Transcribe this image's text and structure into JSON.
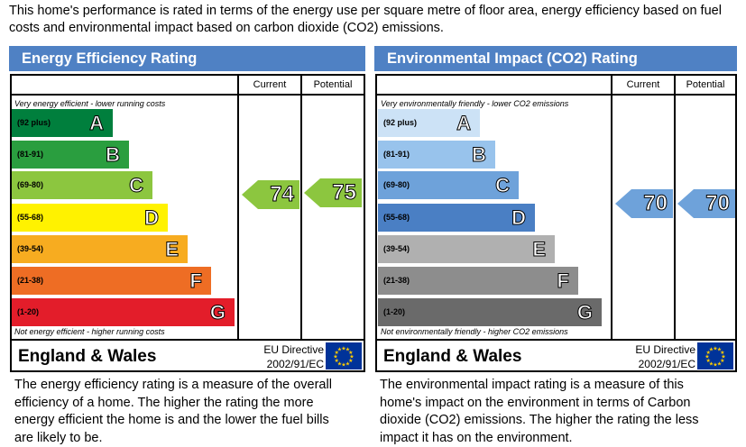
{
  "intro": "This home's performance is rated in terms of the energy use per square metre of floor area, energy efficiency based on fuel costs and environmental impact based on carbon dioxide (CO2) emissions.",
  "panels": [
    {
      "title": "Energy Efficiency Rating",
      "col_current": "Current",
      "col_potential": "Potential",
      "top_note": "Very energy efficient - lower running costs",
      "bottom_note": "Not energy efficient - higher running costs",
      "region": "England & Wales",
      "directive_line1": "EU Directive",
      "directive_line2": "2002/91/EC",
      "bands": [
        {
          "letter": "A",
          "range": "(92 plus)",
          "color": "#007f3d"
        },
        {
          "letter": "B",
          "range": "(81-91)",
          "color": "#2a9e3f"
        },
        {
          "letter": "C",
          "range": "(69-80)",
          "color": "#8cc63f"
        },
        {
          "letter": "D",
          "range": "(55-68)",
          "color": "#fff200"
        },
        {
          "letter": "E",
          "range": "(39-54)",
          "color": "#f7ac20"
        },
        {
          "letter": "F",
          "range": "(21-38)",
          "color": "#ee6d24"
        },
        {
          "letter": "G",
          "range": "(1-20)",
          "color": "#e31d2a"
        }
      ],
      "current": "74",
      "potential": "75",
      "arrow_color": "#8cc63f",
      "description": "The energy efficiency rating is a measure of the overall efficiency of a home. The higher the rating the more energy efficient the home is and the lower the fuel bills are likely to be."
    },
    {
      "title": "Environmental Impact (CO2) Rating",
      "col_current": "Current",
      "col_potential": "Potential",
      "top_note": "Very environmentally friendly - lower CO2 emissions",
      "bottom_note": "Not environmentally friendly - higher CO2 emissions",
      "region": "England & Wales",
      "directive_line1": "EU Directive",
      "directive_line2": "2002/91/EC",
      "bands": [
        {
          "letter": "A",
          "range": "(92 plus)",
          "color": "#cce2f6"
        },
        {
          "letter": "B",
          "range": "(81-91)",
          "color": "#98c3ec"
        },
        {
          "letter": "C",
          "range": "(69-80)",
          "color": "#6ea2da"
        },
        {
          "letter": "D",
          "range": "(55-68)",
          "color": "#4a7fc4"
        },
        {
          "letter": "E",
          "range": "(39-54)",
          "color": "#b0b0b0"
        },
        {
          "letter": "F",
          "range": "(21-38)",
          "color": "#8d8d8d"
        },
        {
          "letter": "G",
          "range": "(1-20)",
          "color": "#6a6a6a"
        }
      ],
      "current": "70",
      "potential": "70",
      "arrow_color": "#6ea2da",
      "description": "The environmental impact rating is a measure of this home's impact on the environment in terms of Carbon dioxide (CO2) emissions. The higher the rating the less impact it has on the environment."
    }
  ]
}
